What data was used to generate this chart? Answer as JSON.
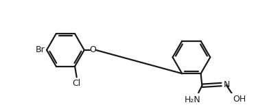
{
  "bg_color": "#ffffff",
  "bond_color": "#1a1a1a",
  "text_color": "#1a1a1a",
  "label_Br": "Br",
  "label_Cl": "Cl",
  "label_O": "O",
  "label_N": "N",
  "label_NH2": "H₂N",
  "label_OH": "OH",
  "figsize": [
    3.92,
    1.53
  ],
  "dpi": 100
}
